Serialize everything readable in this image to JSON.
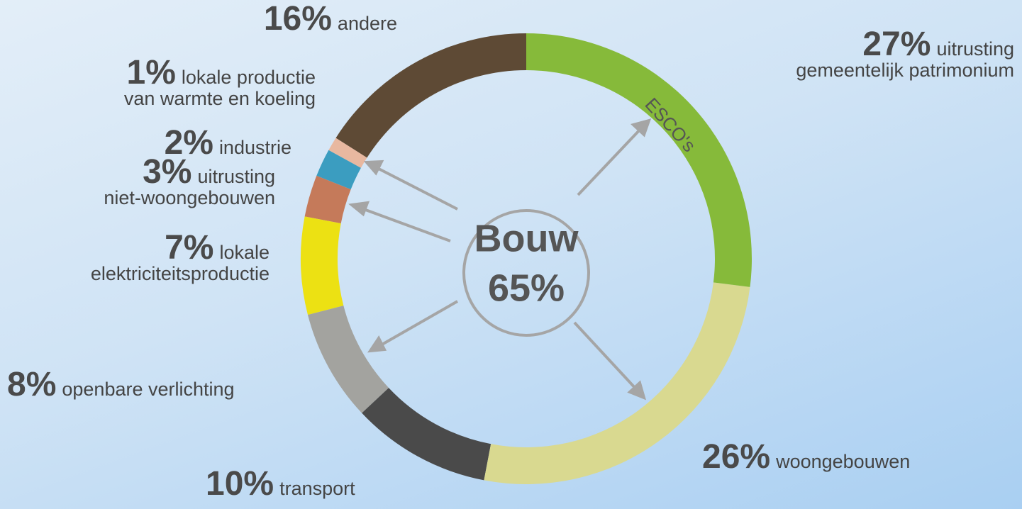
{
  "chart_data": {
    "type": "donut",
    "categories": [
      "uitrusting\ngemeentelijk patrimonium",
      "woongebouwen",
      "transport",
      "openbare verlichting",
      "lokale\nelektriciteitsproductie",
      "uitrusting\nniet-woongebouwen",
      "industrie",
      "lokale productie\nvan warmte en koeling",
      "andere"
    ],
    "values": [
      27,
      26,
      10,
      8,
      7,
      3,
      2,
      1,
      16
    ],
    "value_labels": [
      "27%",
      "26%",
      "10%",
      "8%",
      "7%",
      "3%",
      "2%",
      "1%",
      "16%"
    ],
    "colors": [
      "#86ba3a",
      "#d9d990",
      "#4a4a4a",
      "#a3a39f",
      "#ece113",
      "#c57a5a",
      "#3b9dc0",
      "#e8b8a0",
      "#5e4a35"
    ],
    "center_text": [
      "Bouw",
      "65%"
    ],
    "annotation": "ESCO's"
  }
}
